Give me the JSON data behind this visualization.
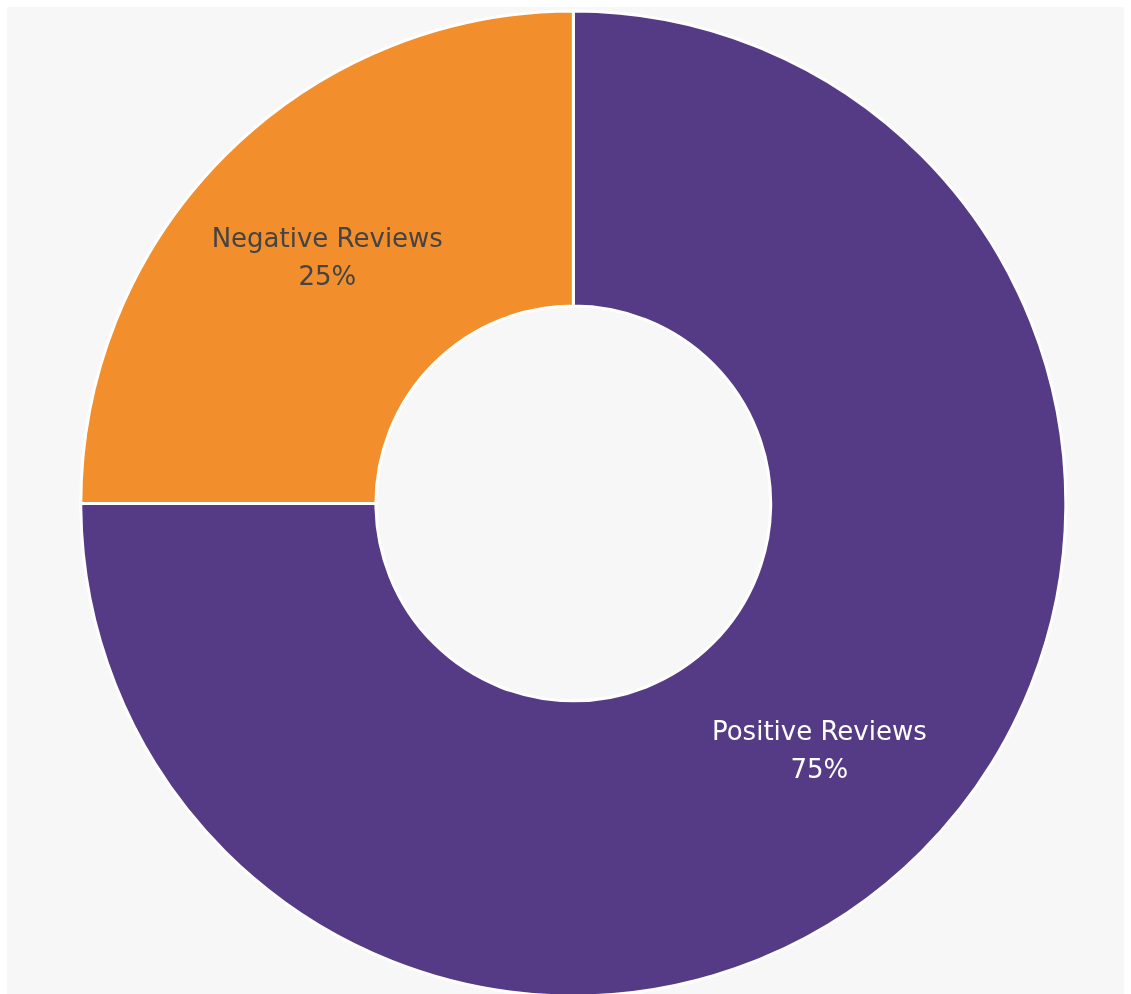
{
  "chart_data": {
    "type": "donut",
    "categories": [
      "Positive Reviews",
      "Negative Reviews"
    ],
    "values": [
      75,
      25
    ],
    "colors": [
      "#553a85",
      "#f28f2c"
    ],
    "value_labels": [
      "75%",
      "25%"
    ],
    "legend": false
  }
}
